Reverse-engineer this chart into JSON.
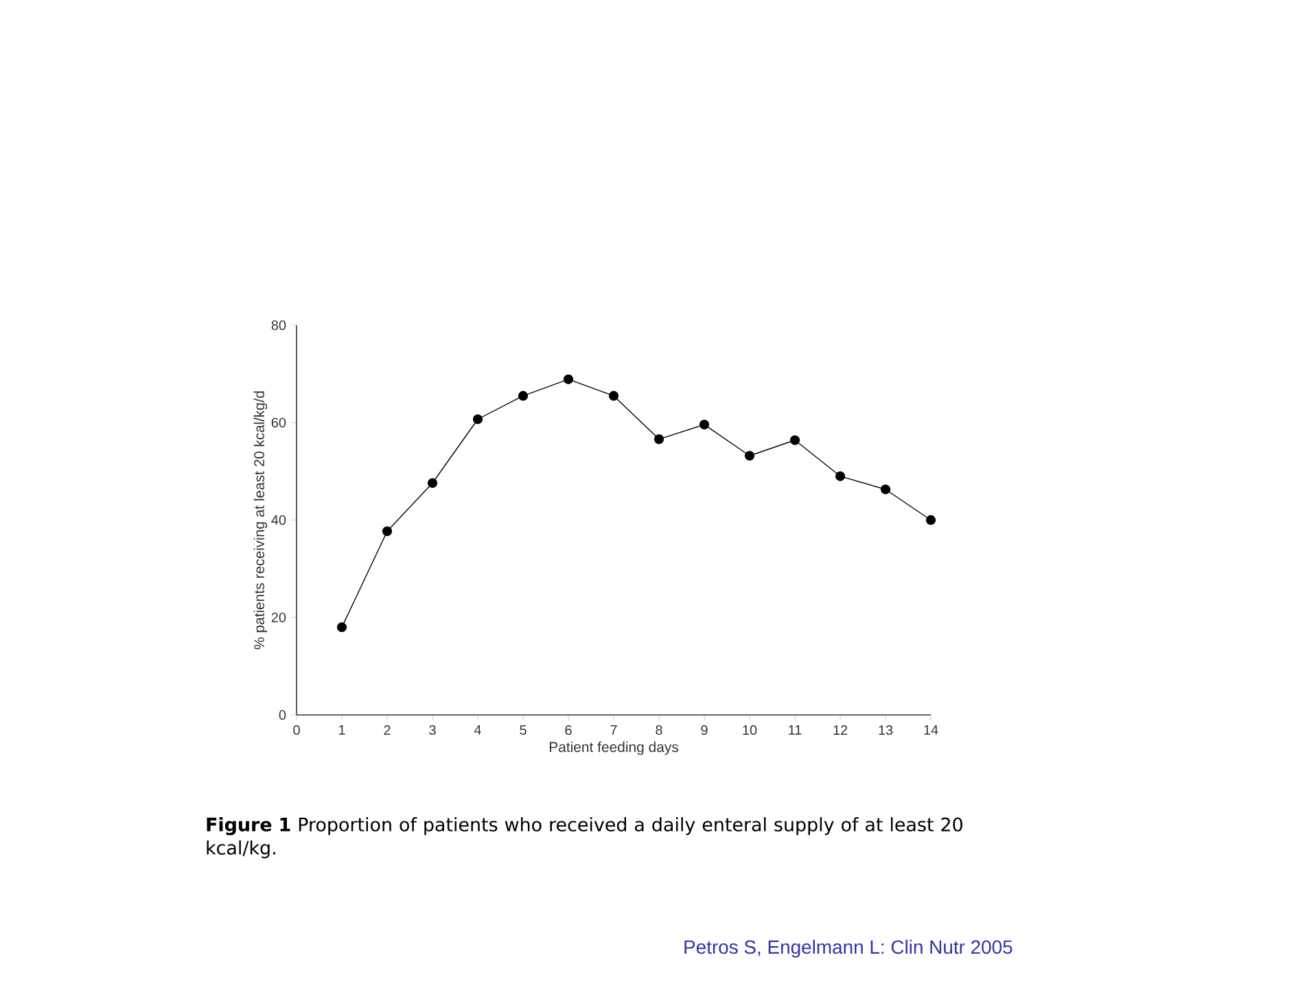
{
  "chart_data": {
    "type": "line",
    "xlabel": "Patient feeding days",
    "ylabel": "% patients receiving at least 20 kcal/kg/d",
    "x": [
      1,
      2,
      3,
      4,
      5,
      6,
      7,
      8,
      9,
      10,
      11,
      12,
      13,
      14
    ],
    "values": [
      18.0,
      37.7,
      47.6,
      60.7,
      65.5,
      68.9,
      65.5,
      56.6,
      59.6,
      53.2,
      56.4,
      49.0,
      46.3,
      40.0
    ],
    "color": "#000000",
    "marker": "circle",
    "line_style": "solid",
    "xlim": [
      0,
      14
    ],
    "ylim": [
      0,
      80
    ],
    "xticks": [
      0,
      1,
      2,
      3,
      4,
      5,
      6,
      7,
      8,
      9,
      10,
      11,
      12,
      13,
      14
    ],
    "yticks": [
      0,
      20,
      40,
      60,
      80
    ],
    "annotations": [
      "**Figure 1** Proportion of patients who received a daily enteral supply of at least 20 kcal/kg.",
      "Petros S, Engelmann L: Clin Nutr 2005"
    ]
  }
}
